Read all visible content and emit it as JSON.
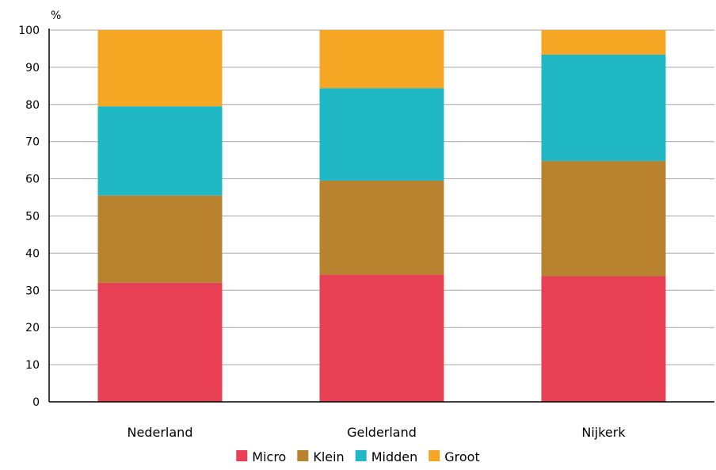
{
  "chart_data": {
    "type": "bar",
    "stacked": true,
    "unit_label": "%",
    "categories": [
      "Nederland",
      "Gelderland",
      "Nijkerk"
    ],
    "series": [
      {
        "name": "Micro",
        "color": "#e84055",
        "values": [
          32.0,
          34.2,
          33.8
        ]
      },
      {
        "name": "Klein",
        "color": "#b8822f",
        "values": [
          23.5,
          25.3,
          31.0
        ]
      },
      {
        "name": "Midden",
        "color": "#20b8c4",
        "values": [
          24.0,
          24.9,
          28.6
        ]
      },
      {
        "name": "Groot",
        "color": "#f5a623",
        "values": [
          20.5,
          15.6,
          6.6
        ]
      }
    ],
    "ylim": [
      0,
      100
    ],
    "yticks": [
      0,
      10,
      20,
      30,
      40,
      50,
      60,
      70,
      80,
      90,
      100
    ],
    "grid": true,
    "legend_position": "bottom"
  }
}
